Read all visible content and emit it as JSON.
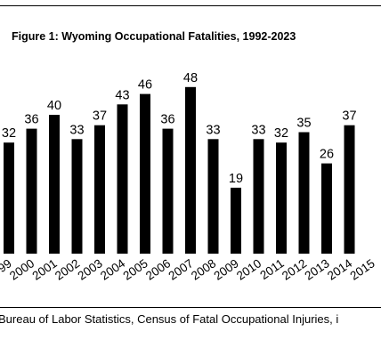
{
  "chart_data": {
    "type": "bar",
    "title": "Figure 1: Wyoming Occupational Fatalities, 1992-2023",
    "source": "Bureau of Labor Statistics, Census of Fatal Occupational Injuries, i",
    "categories": [
      "1999",
      "2000",
      "2001",
      "2002",
      "2003",
      "2004",
      "2005",
      "2006",
      "2007",
      "2008",
      "2009",
      "2010",
      "2011",
      "2012",
      "2013",
      "2014",
      "2015"
    ],
    "values": [
      32,
      36,
      40,
      33,
      37,
      43,
      46,
      36,
      48,
      33,
      19,
      33,
      32,
      35,
      26,
      37,
      null
    ],
    "ylim": [
      0,
      52
    ],
    "bar_color": "#000000",
    "grid": false
  }
}
